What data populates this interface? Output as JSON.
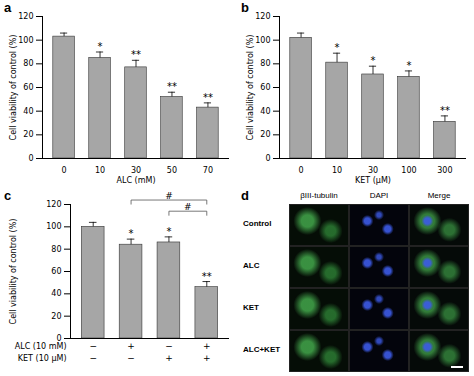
{
  "chart_data": [
    {
      "type": "bar",
      "title": "a",
      "y_label": "Cell viability of control (%)",
      "x_label": "ALC (mM)",
      "categories": [
        "0",
        "10",
        "30",
        "50",
        "70"
      ],
      "values": [
        103,
        85,
        77,
        52,
        43
      ],
      "errors": [
        3,
        5,
        6,
        4,
        4
      ],
      "annotations": [
        null,
        "*",
        "**",
        "**",
        "**"
      ],
      "color": "#a6a6a6",
      "ylim": [
        0,
        120
      ],
      "yticks": [
        0,
        20,
        40,
        60,
        80,
        100,
        120
      ],
      "grid": false
    },
    {
      "type": "bar",
      "title": "b",
      "y_label": "Cell viability of control (%)",
      "x_label": "KET (μM)",
      "categories": [
        "0",
        "10",
        "30",
        "100",
        "300"
      ],
      "values": [
        102,
        81,
        71,
        69,
        31
      ],
      "errors": [
        4,
        8,
        7,
        5,
        5
      ],
      "annotations": [
        null,
        "*",
        "*",
        "*",
        "**"
      ],
      "color": "#a6a6a6",
      "ylim": [
        0,
        120
      ],
      "yticks": [
        0,
        20,
        40,
        60,
        80,
        100,
        120
      ],
      "grid": false
    },
    {
      "type": "bar",
      "title": "c",
      "y_label": "Cell viability of control (%)",
      "categories": [
        null,
        null,
        null,
        null
      ],
      "values": [
        100,
        84,
        86,
        46
      ],
      "errors": [
        4,
        5,
        5,
        5
      ],
      "annotations": [
        null,
        "*",
        "*",
        "**"
      ],
      "treatments": [
        {
          "name": "ALC (10 mM)",
          "levels": [
            "−",
            "+",
            "−",
            "+"
          ]
        },
        {
          "name": "KET (10 μM)",
          "levels": [
            "−",
            "−",
            "+",
            "+"
          ]
        }
      ],
      "comparisons": [
        {
          "from": 1,
          "to": 3,
          "label": "#"
        },
        {
          "from": 2,
          "to": 3,
          "label": "#"
        }
      ],
      "color": "#a6a6a6",
      "ylim": [
        0,
        120
      ],
      "yticks": [
        0,
        20,
        40,
        60,
        80,
        100,
        120
      ],
      "grid": false
    }
  ],
  "image_panel": {
    "title": "d",
    "columns": [
      "βIII-tubulin",
      "DAPI",
      "Merge"
    ],
    "rows": [
      "Control",
      "ALC",
      "KET",
      "ALC+KET"
    ]
  }
}
